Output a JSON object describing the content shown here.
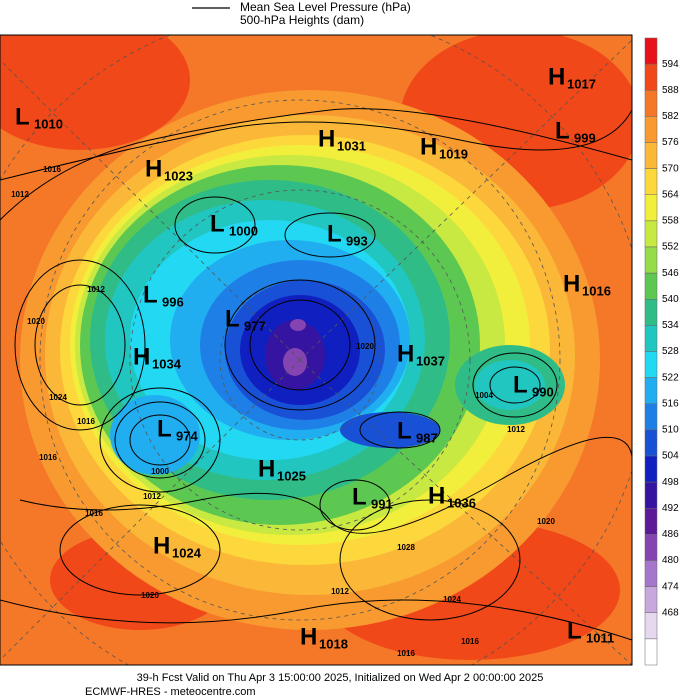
{
  "legend": {
    "line1": "Mean Sea Level Pressure (hPa)",
    "line2": "500-hPa Heights (dam)"
  },
  "colorbar": {
    "levels": [
      594,
      588,
      582,
      576,
      570,
      564,
      558,
      552,
      546,
      540,
      534,
      528,
      522,
      516,
      510,
      504,
      498,
      492,
      486,
      480,
      474,
      468
    ],
    "colors": [
      "#e8101a",
      "#f04818",
      "#f57828",
      "#f89a30",
      "#fbb838",
      "#fdd83c",
      "#f2ee3c",
      "#c8e842",
      "#96dc4a",
      "#5cc852",
      "#30bc86",
      "#22c6c0",
      "#22d8f2",
      "#20aef0",
      "#1e80e6",
      "#1850d6",
      "#1020c0",
      "#3414a0",
      "#5c1a98",
      "#8444b2",
      "#a676cc",
      "#c8a8dc",
      "#e6d8ee",
      "#ffffff"
    ]
  },
  "centers": [
    {
      "kind": "L",
      "value": "1010"
    },
    {
      "kind": "H",
      "value": "1017"
    },
    {
      "kind": "L",
      "value": "999"
    },
    {
      "kind": "H",
      "value": "1031"
    },
    {
      "kind": "H",
      "value": "1019"
    },
    {
      "kind": "H",
      "value": "1023"
    },
    {
      "kind": "L",
      "value": "1000"
    },
    {
      "kind": "L",
      "value": "993"
    },
    {
      "kind": "H",
      "value": "1016"
    },
    {
      "kind": "L",
      "value": "996"
    },
    {
      "kind": "L",
      "value": "977"
    },
    {
      "kind": "H",
      "value": "1037"
    },
    {
      "kind": "H",
      "value": "1034"
    },
    {
      "kind": "L",
      "value": "990"
    },
    {
      "kind": "L",
      "value": "974"
    },
    {
      "kind": "L",
      "value": "987"
    },
    {
      "kind": "H",
      "value": "1025"
    },
    {
      "kind": "L",
      "value": "991"
    },
    {
      "kind": "H",
      "value": "1036"
    },
    {
      "kind": "H",
      "value": "1024"
    },
    {
      "kind": "H",
      "value": "1018"
    },
    {
      "kind": "L",
      "value": "1011"
    }
  ],
  "isobar_labels": [
    "1012",
    "1016",
    "1012",
    "1020",
    "1024",
    "1016",
    "1016",
    "1000",
    "1012",
    "1016",
    "1020",
    "1012",
    "1016",
    "1016",
    "1024",
    "1020",
    "1012",
    "1020",
    "1004",
    "1028"
  ],
  "footer": {
    "line1": "39-h Fcst Valid on Thu Apr  3 15:00:00 2025, Initialized on Wed Apr  2 00:00:00 2025",
    "line2": "ECMWF-HRES  - meteocentre.com"
  }
}
